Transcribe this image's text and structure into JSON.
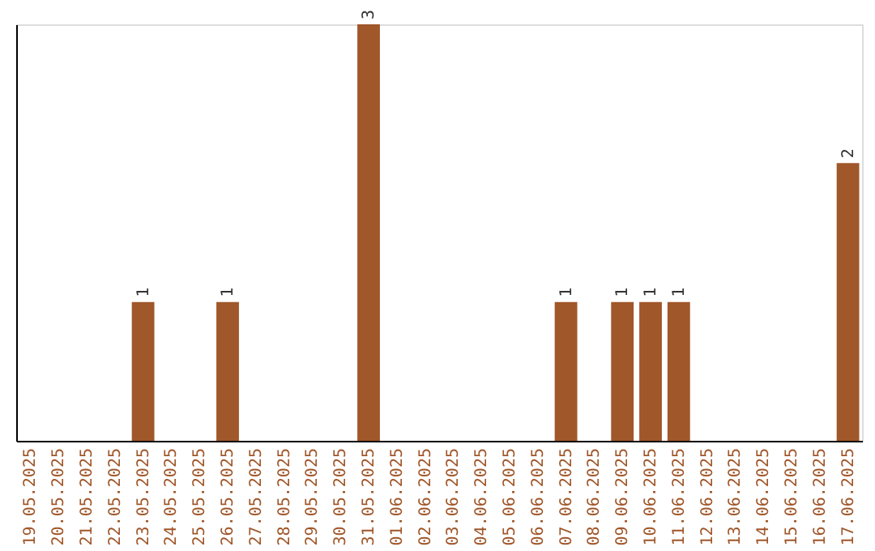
{
  "chart_data": {
    "type": "bar",
    "categories": [
      "19.05.2025",
      "20.05.2025",
      "21.05.2025",
      "22.05.2025",
      "23.05.2025",
      "24.05.2025",
      "25.05.2025",
      "26.05.2025",
      "27.05.2025",
      "28.05.2025",
      "29.05.2025",
      "30.05.2025",
      "31.05.2025",
      "01.06.2025",
      "02.06.2025",
      "03.06.2025",
      "04.06.2025",
      "05.06.2025",
      "06.06.2025",
      "07.06.2025",
      "08.06.2025",
      "09.06.2025",
      "10.06.2025",
      "11.06.2025",
      "12.06.2025",
      "13.06.2025",
      "14.06.2025",
      "15.06.2025",
      "16.06.2025",
      "17.06.2025"
    ],
    "values": [
      0,
      0,
      0,
      0,
      1,
      0,
      0,
      1,
      0,
      0,
      0,
      0,
      3,
      0,
      0,
      0,
      0,
      0,
      0,
      1,
      0,
      1,
      1,
      1,
      0,
      0,
      0,
      0,
      0,
      2
    ],
    "value_labels": [
      null,
      null,
      null,
      null,
      "1",
      null,
      null,
      "1",
      null,
      null,
      null,
      null,
      "3",
      null,
      null,
      null,
      null,
      null,
      null,
      "1",
      null,
      "1",
      "1",
      "1",
      null,
      null,
      null,
      null,
      null,
      "2"
    ],
    "color": "#a0572a",
    "tick_labels": "x"
  }
}
